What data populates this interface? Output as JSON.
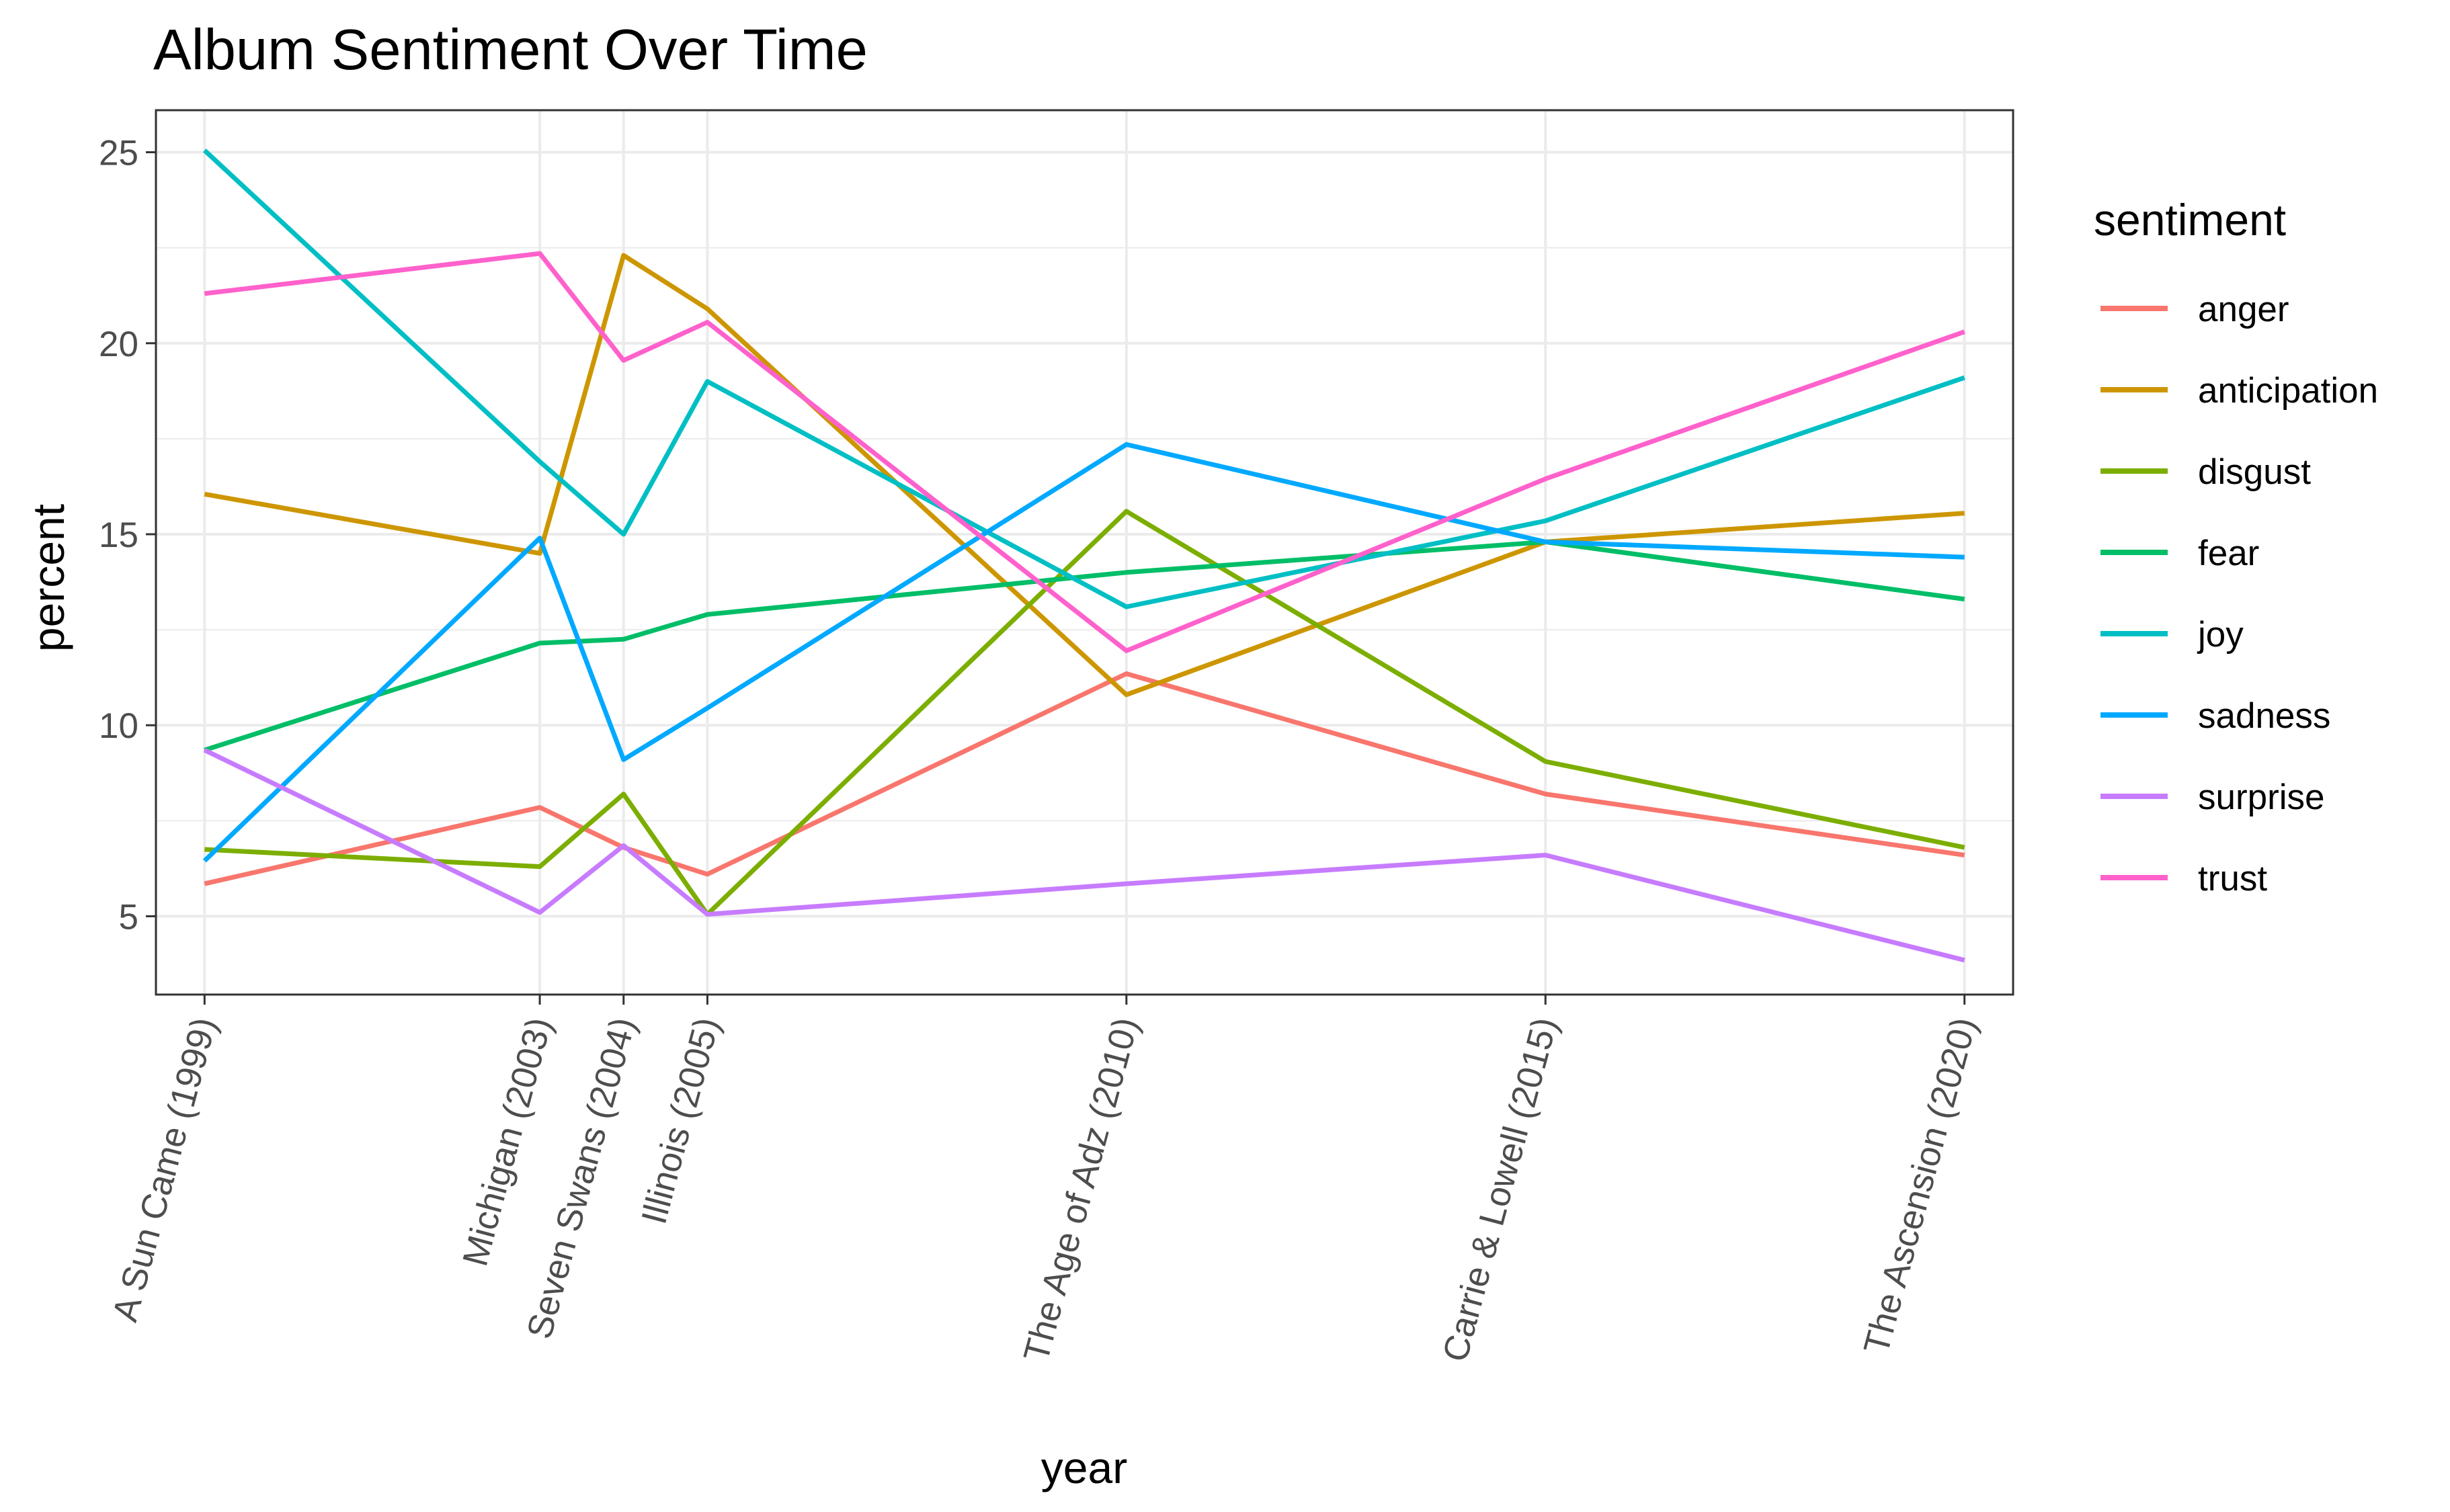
{
  "chart_data": {
    "type": "line",
    "title": "Album Sentiment Over Time",
    "xlabel": "year",
    "ylabel": "percent",
    "x": [
      1999,
      2003,
      2004,
      2005,
      2010,
      2015,
      2020
    ],
    "x_tick_labels": [
      "A Sun Came (1999)",
      "Michigan (2003)",
      "Seven Swans (2004)",
      "Illinois (2005)",
      "The Age of Adz (2010)",
      "Carrie & Lowell (2015)",
      "The Ascension (2020)"
    ],
    "xlim": [
      1998.42,
      2020.58
    ],
    "ylim": [
      2.95,
      26.1
    ],
    "y_ticks": [
      5,
      10,
      15,
      20,
      25
    ],
    "y_tick_labels": [
      "5",
      "10",
      "15",
      "20",
      "25"
    ],
    "grid": true,
    "legend": {
      "title": "sentiment",
      "position": "right"
    },
    "series": [
      {
        "name": "anger",
        "color": "#F8766D",
        "values": [
          5.85,
          7.85,
          6.8,
          6.1,
          11.35,
          8.2,
          6.6
        ]
      },
      {
        "name": "anticipation",
        "color": "#CD9600",
        "values": [
          16.05,
          14.5,
          22.3,
          20.9,
          10.8,
          14.8,
          15.55
        ]
      },
      {
        "name": "disgust",
        "color": "#7CAE00",
        "values": [
          6.75,
          6.3,
          8.2,
          5.05,
          15.6,
          9.05,
          6.8
        ]
      },
      {
        "name": "fear",
        "color": "#00BE67",
        "values": [
          9.35,
          12.15,
          12.25,
          12.9,
          14.0,
          14.8,
          13.3
        ]
      },
      {
        "name": "joy",
        "color": "#00BFC4",
        "values": [
          25.05,
          16.9,
          15.0,
          19.0,
          13.1,
          15.35,
          19.1
        ]
      },
      {
        "name": "sadness",
        "color": "#00A9FF",
        "values": [
          6.45,
          14.9,
          9.1,
          10.45,
          17.35,
          14.8,
          14.4
        ]
      },
      {
        "name": "surprise",
        "color": "#C77CFF",
        "values": [
          9.35,
          5.1,
          6.85,
          5.05,
          5.85,
          6.6,
          3.85
        ]
      },
      {
        "name": "trust",
        "color": "#FF61CC",
        "values": [
          21.3,
          22.35,
          19.55,
          20.55,
          11.95,
          16.45,
          20.3
        ]
      }
    ]
  }
}
